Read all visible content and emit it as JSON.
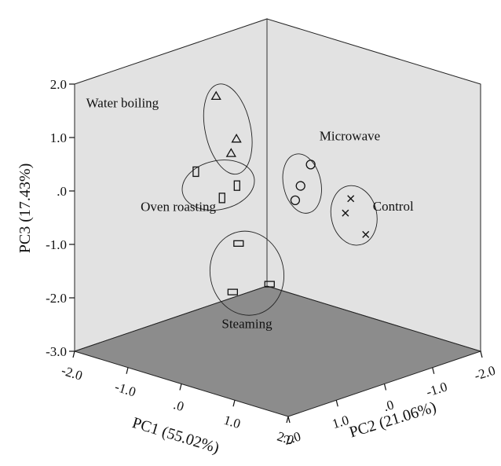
{
  "chart_data": {
    "type": "scatter",
    "projection": "3d",
    "title": "",
    "xlabel": "PC1 (55.02%)",
    "ylabel": "PC2 (21.06%)",
    "zlabel": "PC3 (17.43%)",
    "xlim": [
      -2.0,
      2.0
    ],
    "ylim": [
      -2.0,
      2.0
    ],
    "zlim": [
      -3.0,
      2.0
    ],
    "x_ticks": [
      "-2.0",
      "-1.0",
      ".0",
      "1.0",
      "2.0"
    ],
    "y_ticks": [
      "2.0",
      "1.0",
      ".0",
      "-1.0",
      "-2.0"
    ],
    "z_ticks": [
      "2.0",
      "1.0",
      ".0",
      "-1.0",
      "-2.0",
      "-3.0"
    ],
    "grid": false,
    "background_colors": {
      "back_walls": "#e2e2e2",
      "floor": "#8c8c8c"
    },
    "series": [
      {
        "name": "Water boiling",
        "marker": "triangle",
        "points": [
          {
            "x": 0.2,
            "y": 1.5,
            "z": 2.3
          },
          {
            "x": 0.4,
            "y": 1.3,
            "z": 1.5
          },
          {
            "x": 0.3,
            "y": 1.3,
            "z": 1.2
          }
        ]
      },
      {
        "name": "Microwave",
        "marker": "circle",
        "points": [
          {
            "x": 0.8,
            "y": 0.2,
            "z": 0.8
          },
          {
            "x": 0.7,
            "y": 0.3,
            "z": 0.4
          },
          {
            "x": 0.6,
            "y": 0.3,
            "z": 0.1
          }
        ]
      },
      {
        "name": "Control",
        "marker": "x",
        "points": [
          {
            "x": 1.1,
            "y": -0.3,
            "z": 0.1
          },
          {
            "x": 1.0,
            "y": -0.3,
            "z": -0.2
          },
          {
            "x": 1.2,
            "y": -0.5,
            "z": -0.6
          }
        ]
      },
      {
        "name": "Oven roasting",
        "marker": "rectangle",
        "points": [
          {
            "x": -0.9,
            "y": 0.7,
            "z": 0.3
          },
          {
            "x": -0.5,
            "y": 0.6,
            "z": -0.1
          },
          {
            "x": -0.4,
            "y": 0.4,
            "z": 0.1
          }
        ]
      },
      {
        "name": "Steaming",
        "marker": "rectangle",
        "points": [
          {
            "x": -0.1,
            "y": 0.7,
            "z": -0.8
          },
          {
            "x": 0.3,
            "y": 0.5,
            "z": -1.5
          },
          {
            "x": -0.3,
            "y": 0.6,
            "z": -1.8
          }
        ]
      }
    ]
  }
}
